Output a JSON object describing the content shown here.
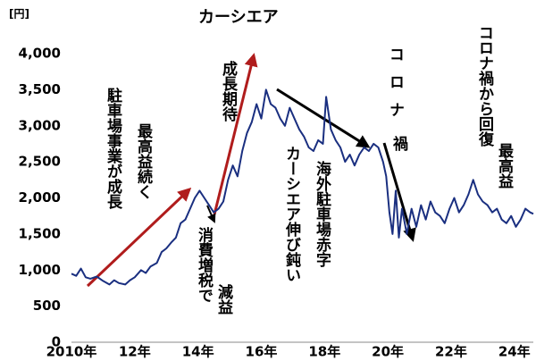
{
  "chart_data": {
    "type": "line",
    "y_unit": "[円]",
    "xlim": [
      2010,
      2024.6
    ],
    "xticks": [
      {
        "value": 2010,
        "label": "2010年"
      },
      {
        "value": 2012,
        "label": "12年"
      },
      {
        "value": 2014,
        "label": "14年"
      },
      {
        "value": 2016,
        "label": "16年"
      },
      {
        "value": 2018,
        "label": "18年"
      },
      {
        "value": 2020,
        "label": "20年"
      },
      {
        "value": 2022,
        "label": "22年"
      },
      {
        "value": 2024,
        "label": "24年"
      }
    ],
    "ylim": [
      0,
      4000
    ],
    "yticks": [
      0,
      500,
      {
        "value": 1000,
        "label": "1,000"
      },
      {
        "value": 1500,
        "label": "1,500"
      },
      {
        "value": 2000,
        "label": "2,000"
      },
      {
        "value": 2500,
        "label": "2,500"
      },
      {
        "value": 3000,
        "label": "3,000"
      },
      {
        "value": 3500,
        "label": "3,500"
      },
      {
        "value": 4000,
        "label": "4,000"
      }
    ],
    "series": [
      {
        "color": "#1a2f80",
        "x": [
          2010.0,
          2010.15,
          2010.3,
          2010.45,
          2010.6,
          2010.8,
          2011.0,
          2011.2,
          2011.35,
          2011.5,
          2011.7,
          2011.85,
          2012.0,
          2012.2,
          2012.35,
          2012.5,
          2012.7,
          2012.85,
          2013.0,
          2013.15,
          2013.3,
          2013.45,
          2013.6,
          2013.75,
          2013.9,
          2014.05,
          2014.2,
          2014.35,
          2014.5,
          2014.65,
          2014.8,
          2014.95,
          2015.1,
          2015.25,
          2015.4,
          2015.55,
          2015.7,
          2015.85,
          2016.0,
          2016.15,
          2016.3,
          2016.45,
          2016.6,
          2016.75,
          2016.9,
          2017.05,
          2017.2,
          2017.35,
          2017.5,
          2017.65,
          2017.8,
          2017.95,
          2018.05,
          2018.2,
          2018.35,
          2018.5,
          2018.65,
          2018.8,
          2018.95,
          2019.1,
          2019.25,
          2019.4,
          2019.55,
          2019.7,
          2019.85,
          2019.95,
          2020.05,
          2020.15,
          2020.25,
          2020.35,
          2020.45,
          2020.6,
          2020.75,
          2020.9,
          2021.05,
          2021.2,
          2021.35,
          2021.5,
          2021.65,
          2021.8,
          2021.95,
          2022.1,
          2022.25,
          2022.4,
          2022.55,
          2022.7,
          2022.85,
          2023.0,
          2023.15,
          2023.3,
          2023.45,
          2023.6,
          2023.75,
          2023.9,
          2024.05,
          2024.2,
          2024.35,
          2024.5,
          2024.6
        ],
        "values": [
          950,
          920,
          1020,
          900,
          880,
          910,
          850,
          800,
          860,
          820,
          800,
          860,
          900,
          1000,
          960,
          1050,
          1100,
          1250,
          1300,
          1380,
          1450,
          1650,
          1700,
          1850,
          2000,
          2100,
          2000,
          1900,
          1800,
          1850,
          1950,
          2250,
          2450,
          2300,
          2650,
          2900,
          3050,
          3300,
          3100,
          3500,
          3300,
          3250,
          3100,
          3000,
          3250,
          3100,
          2950,
          2850,
          2700,
          2650,
          2800,
          2750,
          3400,
          2950,
          2800,
          2700,
          2500,
          2600,
          2450,
          2600,
          2700,
          2650,
          2750,
          2700,
          2500,
          2300,
          1800,
          1500,
          2100,
          1450,
          1850,
          1500,
          1850,
          1600,
          1900,
          1700,
          1950,
          1800,
          1750,
          1650,
          1850,
          2000,
          1800,
          1900,
          2050,
          2250,
          2050,
          1950,
          1900,
          1800,
          1850,
          1700,
          1650,
          1750,
          1600,
          1700,
          1850,
          1800,
          1780
        ]
      }
    ],
    "annotations": [
      "カーシエア",
      "成長期待",
      "駐車場事業が成長",
      "最高益続く",
      "消費増税で",
      "減益",
      "カーシエア伸び鈍い",
      "海外駐車場赤字",
      "コロナ",
      "禍",
      "コロナ禍から回復",
      "最高益"
    ]
  }
}
